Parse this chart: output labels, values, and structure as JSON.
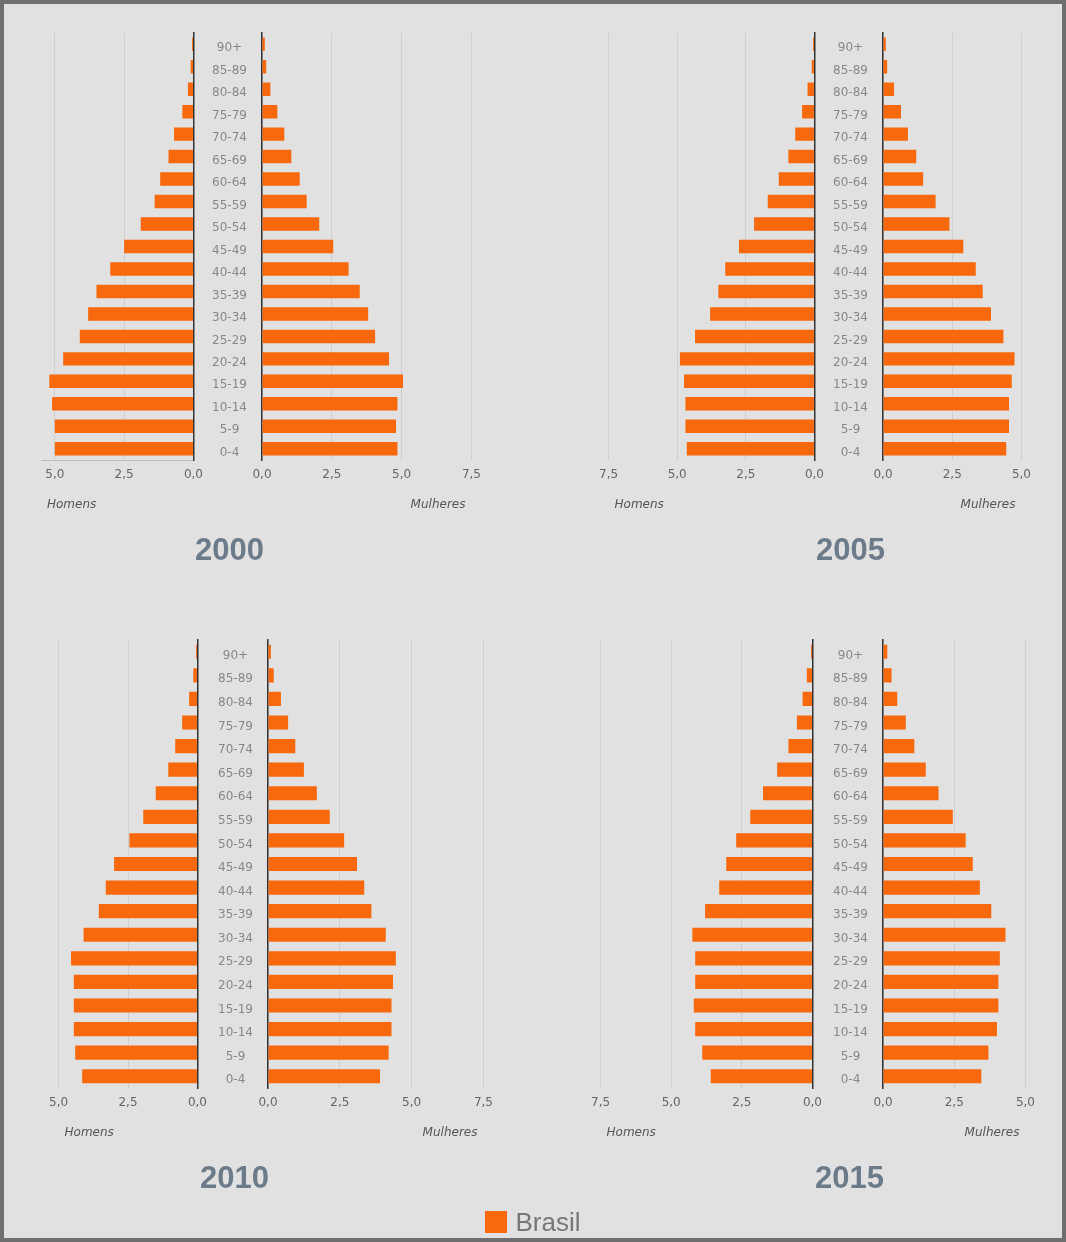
{
  "chart_data": [
    {
      "type": "bar",
      "orientation": "horizontal",
      "title": "2000",
      "xlabel": "Homens",
      "tick_labels": "x",
      "grid": "x",
      "color": "#f7690c",
      "categories": [
        null,
        null,
        null,
        null,
        null,
        null,
        null,
        null,
        null,
        null,
        null,
        null,
        null,
        null,
        null,
        null,
        null,
        null,
        null
      ],
      "values": [
        0.05,
        0.1,
        0.2,
        0.4,
        0.7,
        0.9,
        1.2,
        1.4,
        1.9,
        2.5,
        3.0,
        3.5,
        3.8,
        4.1,
        4.7,
        5.2,
        5.1,
        5.0,
        5.0
      ],
      "xlim": [
        5.5,
        0
      ],
      "xticks": [
        {
          "value": 5,
          "label": "5,0"
        },
        {
          "value": 2.5,
          "label": "2,5"
        },
        {
          "value": 0,
          "label": "0,0"
        }
      ]
    },
    {
      "type": "bar",
      "orientation": "horizontal",
      "xlabel": "Mulheres",
      "grid": "x",
      "color": "#f7690c",
      "categories": [
        "90+",
        "85-89",
        "80-84",
        "75-79",
        "70-74",
        "65-69",
        "60-64",
        "55-59",
        "50-54",
        "45-49",
        "40-44",
        "35-39",
        "30-34",
        "25-29",
        "20-24",
        "15-19",
        "10-14",
        "5-9",
        "0-4"
      ],
      "values": [
        0.1,
        0.15,
        0.3,
        0.55,
        0.8,
        1.05,
        1.35,
        1.6,
        2.05,
        2.55,
        3.1,
        3.5,
        3.8,
        4.05,
        4.55,
        5.05,
        4.85,
        4.8,
        4.85
      ],
      "xlim": [
        0,
        7.5
      ],
      "xticks": [
        {
          "value": 0,
          "label": "0,0"
        },
        {
          "value": 2.5,
          "label": "2,5"
        },
        {
          "value": 5,
          "label": "5,0"
        },
        {
          "value": 7.5,
          "label": "7,5"
        }
      ]
    },
    {
      "type": "bar",
      "orientation": "horizontal",
      "title": "2005",
      "xlabel": "Homens",
      "tick_labels": "x",
      "grid": "x",
      "color": "#f7690c",
      "categories": [
        null,
        null,
        null,
        null,
        null,
        null,
        null,
        null,
        null,
        null,
        null,
        null,
        null,
        null,
        null,
        null,
        null,
        null,
        null
      ],
      "values": [
        0.05,
        0.1,
        0.25,
        0.45,
        0.7,
        0.95,
        1.3,
        1.7,
        2.2,
        2.75,
        3.25,
        3.5,
        3.8,
        4.35,
        4.9,
        4.75,
        4.7,
        4.7,
        4.65
      ],
      "xlim": [
        7.5,
        0
      ],
      "xticks": [
        {
          "value": 7.5,
          "label": "7,5"
        },
        {
          "value": 5,
          "label": "5,0"
        },
        {
          "value": 2.5,
          "label": "2,5"
        },
        {
          "value": 0,
          "label": "0,0"
        }
      ]
    },
    {
      "type": "bar",
      "orientation": "horizontal",
      "xlabel": "Mulheres",
      "grid": "x",
      "color": "#f7690c",
      "categories": [
        "90+",
        "85-89",
        "80-84",
        "75-79",
        "70-74",
        "65-69",
        "60-64",
        "55-59",
        "50-54",
        "45-49",
        "40-44",
        "35-39",
        "30-34",
        "25-29",
        "20-24",
        "15-19",
        "10-14",
        "5-9",
        "0-4"
      ],
      "values": [
        0.1,
        0.15,
        0.4,
        0.65,
        0.9,
        1.2,
        1.45,
        1.9,
        2.4,
        2.9,
        3.35,
        3.6,
        3.9,
        4.35,
        4.75,
        4.65,
        4.55,
        4.55,
        4.45
      ],
      "xlim": [
        0,
        5
      ],
      "xticks": [
        {
          "value": 0,
          "label": "0,0"
        },
        {
          "value": 2.5,
          "label": "2,5"
        },
        {
          "value": 5,
          "label": "5,0"
        }
      ]
    },
    {
      "type": "bar",
      "orientation": "horizontal",
      "title": "2010",
      "xlabel": "Homens",
      "tick_labels": "x",
      "grid": "x",
      "color": "#f7690c",
      "categories": [
        null,
        null,
        null,
        null,
        null,
        null,
        null,
        null,
        null,
        null,
        null,
        null,
        null,
        null,
        null,
        null,
        null,
        null,
        null
      ],
      "values": [
        0.05,
        0.15,
        0.3,
        0.55,
        0.8,
        1.05,
        1.5,
        1.95,
        2.45,
        3.0,
        3.3,
        3.55,
        4.1,
        4.55,
        4.45,
        4.45,
        4.45,
        4.4,
        4.15
      ],
      "xlim": [
        5,
        0
      ],
      "xticks": [
        {
          "value": 5,
          "label": "5,0"
        },
        {
          "value": 2.5,
          "label": "2,5"
        },
        {
          "value": 0,
          "label": "0,0"
        }
      ]
    },
    {
      "type": "bar",
      "orientation": "horizontal",
      "xlabel": "Mulheres",
      "grid": "x",
      "color": "#f7690c",
      "categories": [
        "90+",
        "85-89",
        "80-84",
        "75-79",
        "70-74",
        "65-69",
        "60-64",
        "55-59",
        "50-54",
        "45-49",
        "40-44",
        "35-39",
        "30-34",
        "25-29",
        "20-24",
        "15-19",
        "10-14",
        "5-9",
        "0-4"
      ],
      "values": [
        0.1,
        0.2,
        0.45,
        0.7,
        0.95,
        1.25,
        1.7,
        2.15,
        2.65,
        3.1,
        3.35,
        3.6,
        4.1,
        4.45,
        4.35,
        4.3,
        4.3,
        4.2,
        3.9
      ],
      "xlim": [
        0,
        7.5
      ],
      "xticks": [
        {
          "value": 0,
          "label": "0,0"
        },
        {
          "value": 2.5,
          "label": "2,5"
        },
        {
          "value": 5,
          "label": "5,0"
        },
        {
          "value": 7.5,
          "label": "7,5"
        }
      ]
    },
    {
      "type": "bar",
      "orientation": "horizontal",
      "title": "2015",
      "xlabel": "Homens",
      "tick_labels": "x",
      "grid": "x",
      "color": "#f7690c",
      "categories": [
        null,
        null,
        null,
        null,
        null,
        null,
        null,
        null,
        null,
        null,
        null,
        null,
        null,
        null,
        null,
        null,
        null,
        null,
        null
      ],
      "values": [
        0.05,
        0.2,
        0.35,
        0.55,
        0.85,
        1.25,
        1.75,
        2.2,
        2.7,
        3.05,
        3.3,
        3.8,
        4.25,
        4.15,
        4.15,
        4.2,
        4.15,
        3.9,
        3.6
      ],
      "xlim": [
        7.5,
        0
      ],
      "xticks": [
        {
          "value": 7.5,
          "label": "7,5"
        },
        {
          "value": 5,
          "label": "5,0"
        },
        {
          "value": 2.5,
          "label": "2,5"
        },
        {
          "value": 0,
          "label": "0,0"
        }
      ]
    },
    {
      "type": "bar",
      "orientation": "horizontal",
      "xlabel": "Mulheres",
      "grid": "x",
      "legend": "bottom",
      "categories": [
        "90+",
        "85-89",
        "80-84",
        "75-79",
        "70-74",
        "65-69",
        "60-64",
        "55-59",
        "50-54",
        "45-49",
        "40-44",
        "35-39",
        "30-34",
        "25-29",
        "20-24",
        "15-19",
        "10-14",
        "5-9",
        "0-4"
      ],
      "series": [
        {
          "name": "Brasil",
          "color": "#f7690c",
          "values": [
            0.15,
            0.3,
            0.5,
            0.8,
            1.1,
            1.5,
            1.95,
            2.45,
            2.9,
            3.15,
            3.4,
            3.8,
            4.3,
            4.1,
            4.05,
            4.05,
            4.0,
            3.7,
            3.45
          ]
        }
      ],
      "xlim": [
        0,
        5
      ],
      "xticks": [
        {
          "value": 0,
          "label": "0,0"
        },
        {
          "value": 2.5,
          "label": "2,5"
        },
        {
          "value": 5,
          "label": "5,0"
        }
      ]
    }
  ]
}
